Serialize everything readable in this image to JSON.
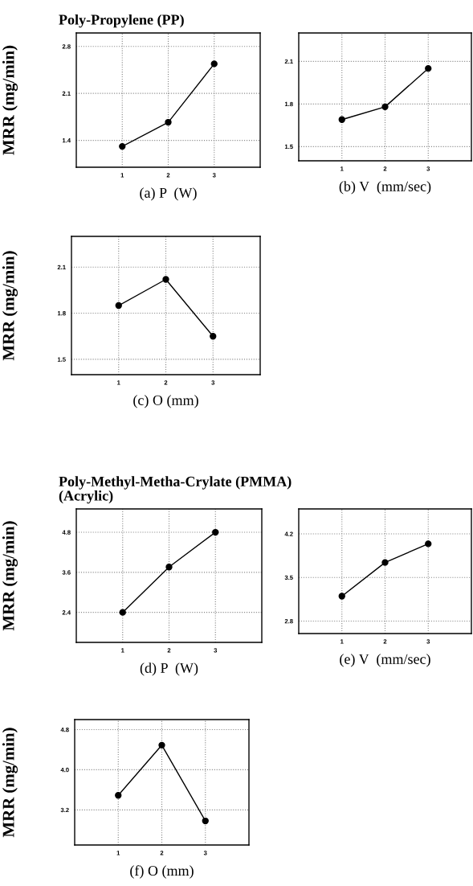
{
  "chart_data": [
    {
      "type": "line",
      "title": "Poly-Propylene (PP)",
      "xlabel": "(a) P  (W)",
      "ylabel": "MRR (mg/min)",
      "x": [
        1,
        2,
        3
      ],
      "values": [
        1.31,
        1.67,
        2.54
      ],
      "color": "#000000",
      "xlim": [
        0,
        4
      ],
      "xticks": [
        1,
        2,
        3
      ],
      "ylim": [
        1.0,
        3.0
      ],
      "yticks": [
        1.4,
        2.1,
        2.8
      ],
      "grid": true,
      "marker": "circle",
      "line_style": "solid"
    },
    {
      "type": "line",
      "xlabel": "(b) V  (mm/sec)",
      "x": [
        1,
        2,
        3
      ],
      "values": [
        1.69,
        1.78,
        2.05
      ],
      "color": "#000000",
      "xlim": [
        0,
        4
      ],
      "xticks": [
        1,
        2,
        3
      ],
      "ylim": [
        1.4,
        2.3
      ],
      "yticks": [
        1.5,
        1.8,
        2.1
      ],
      "grid": true,
      "marker": "circle",
      "line_style": "solid"
    },
    {
      "type": "line",
      "xlabel": "(c) O (mm)",
      "ylabel": "MRR (mg/min)",
      "x": [
        1,
        2,
        3
      ],
      "values": [
        1.85,
        2.02,
        1.65
      ],
      "color": "#000000",
      "xlim": [
        0,
        4
      ],
      "xticks": [
        1,
        2,
        3
      ],
      "ylim": [
        1.4,
        2.3
      ],
      "yticks": [
        1.5,
        1.8,
        2.1
      ],
      "grid": true,
      "marker": "circle",
      "line_style": "solid"
    },
    {
      "type": "line",
      "title": "Poly-Methyl-Metha-Crylate (PMMA)\n(Acrylic)",
      "xlabel": "(d) P  (W)",
      "ylabel": "MRR (mg/min)",
      "x": [
        1,
        2,
        3
      ],
      "values": [
        2.4,
        3.76,
        4.8
      ],
      "color": "#000000",
      "xlim": [
        0,
        4
      ],
      "xticks": [
        1,
        2,
        3
      ],
      "ylim": [
        1.5,
        5.5
      ],
      "yticks": [
        2.4,
        3.6,
        4.8
      ],
      "grid": true,
      "marker": "circle",
      "line_style": "solid"
    },
    {
      "type": "line",
      "xlabel": "(e) V  (mm/sec)",
      "x": [
        1,
        2,
        3
      ],
      "values": [
        3.2,
        3.74,
        4.04
      ],
      "color": "#000000",
      "xlim": [
        0,
        4
      ],
      "xticks": [
        1,
        2,
        3
      ],
      "ylim": [
        2.6,
        4.6
      ],
      "yticks": [
        2.8,
        3.5,
        4.2
      ],
      "grid": true,
      "marker": "circle",
      "line_style": "solid"
    },
    {
      "type": "line",
      "xlabel": "(f) O (mm)",
      "ylabel": "MRR (mg/min)",
      "x": [
        1,
        2,
        3
      ],
      "values": [
        3.49,
        4.49,
        2.98
      ],
      "color": "#000000",
      "xlim": [
        0,
        4
      ],
      "xticks": [
        1,
        2,
        3
      ],
      "ylim": [
        2.5,
        5.0
      ],
      "yticks": [
        3.2,
        {
          "value": 4.0,
          "label": "4.0"
        },
        4.8
      ],
      "grid": true,
      "marker": "circle",
      "line_style": "solid"
    }
  ]
}
